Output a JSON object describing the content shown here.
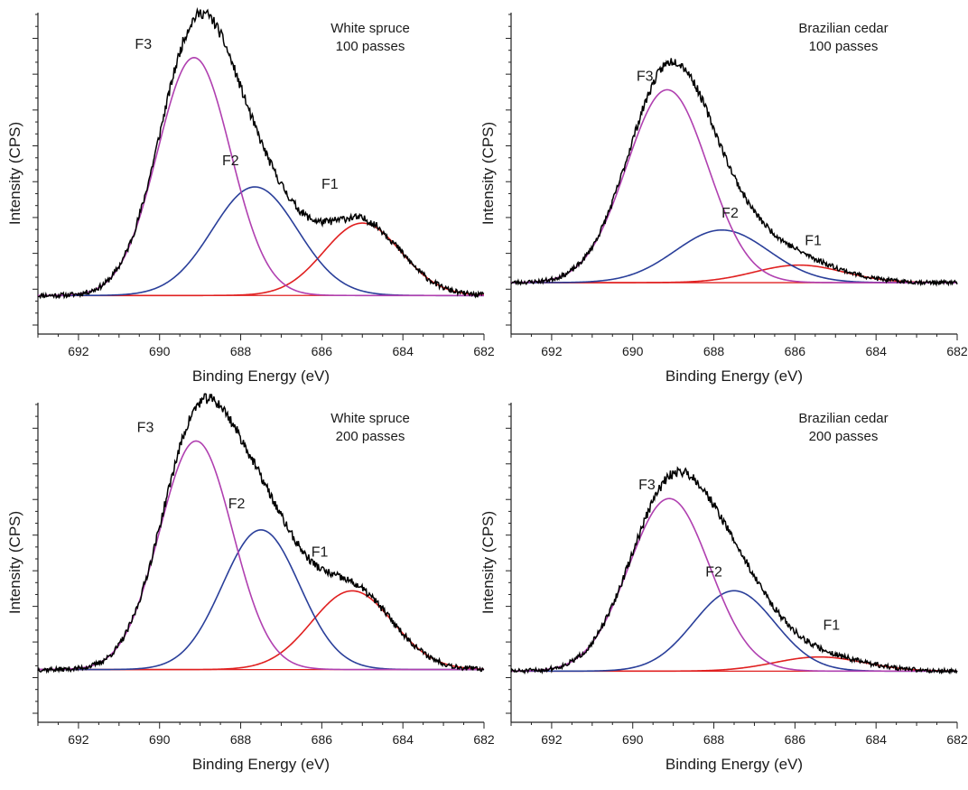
{
  "colors": {
    "measured": "#000000",
    "F1": "#e02020",
    "F2": "#2a3f9a",
    "F3": "#b040b0",
    "baseline": "#e02020"
  },
  "chart_data": [
    {
      "type": "line",
      "sample": "White spruce\n100 passes",
      "sample_lines": [
        "White spruce",
        "100 passes"
      ],
      "xlabel": "Binding Energy (eV)",
      "ylabel": "Intensity (CPS)",
      "xlim": [
        693,
        682
      ],
      "x_ticks": [
        692,
        690,
        688,
        686,
        684,
        682
      ],
      "x_tick_labels": [
        "692",
        "690",
        "688",
        "686",
        "684",
        "682"
      ],
      "ylim": [
        0,
        1.0
      ],
      "baseline": 0.03,
      "components": [
        {
          "name": "F1",
          "center": 685.0,
          "height": 0.28,
          "width": 0.95
        },
        {
          "name": "F2",
          "center": 687.65,
          "height": 0.42,
          "width": 1.05
        },
        {
          "name": "F3",
          "center": 689.15,
          "height": 0.92,
          "width": 0.9
        }
      ],
      "noise_seed": 11
    },
    {
      "type": "line",
      "sample": "Brazilian cedar\n100 passes",
      "sample_lines": [
        "Brazilian cedar",
        "100 passes"
      ],
      "xlabel": "Binding Energy (eV)",
      "ylabel": "Intensity (CPS)",
      "xlim": [
        693,
        682
      ],
      "x_ticks": [
        692,
        690,
        688,
        686,
        684,
        682
      ],
      "x_tick_labels": [
        "692",
        "690",
        "688",
        "686",
        "684",
        "682"
      ],
      "ylim": [
        0,
        1.0
      ],
      "baseline": 0.03,
      "components": [
        {
          "name": "F1",
          "center": 685.9,
          "height": 0.08,
          "width": 1.1
        },
        {
          "name": "F2",
          "center": 687.8,
          "height": 0.24,
          "width": 1.15
        },
        {
          "name": "F3",
          "center": 689.15,
          "height": 0.88,
          "width": 1.0
        }
      ],
      "noise_seed": 23
    },
    {
      "type": "line",
      "sample": "White spruce\n200 passes",
      "sample_lines": [
        "White spruce",
        "200 passes"
      ],
      "xlabel": "Binding Energy (eV)",
      "ylabel": "Intensity (CPS)",
      "xlim": [
        693,
        682
      ],
      "x_ticks": [
        692,
        690,
        688,
        686,
        684,
        682
      ],
      "x_tick_labels": [
        "692",
        "690",
        "688",
        "686",
        "684",
        "682"
      ],
      "ylim": [
        0,
        1.0
      ],
      "baseline": 0.03,
      "components": [
        {
          "name": "F1",
          "center": 685.25,
          "height": 0.31,
          "width": 1.0
        },
        {
          "name": "F2",
          "center": 687.5,
          "height": 0.55,
          "width": 0.95
        },
        {
          "name": "F3",
          "center": 689.1,
          "height": 0.9,
          "width": 0.9
        }
      ],
      "noise_seed": 37
    },
    {
      "type": "line",
      "sample": "Brazilian cedar\n200 passes",
      "sample_lines": [
        "Brazilian cedar",
        "200 passes"
      ],
      "xlabel": "Binding Energy (eV)",
      "ylabel": "Intensity (CPS)",
      "xlim": [
        693,
        682
      ],
      "x_ticks": [
        692,
        690,
        688,
        686,
        684,
        682
      ],
      "x_tick_labels": [
        "692",
        "690",
        "688",
        "686",
        "684",
        "682"
      ],
      "ylim": [
        0,
        1.0
      ],
      "baseline": 0.03,
      "components": [
        {
          "name": "F1",
          "center": 685.4,
          "height": 0.06,
          "width": 1.1
        },
        {
          "name": "F2",
          "center": 687.5,
          "height": 0.34,
          "width": 1.0
        },
        {
          "name": "F3",
          "center": 689.1,
          "height": 0.73,
          "width": 1.0
        }
      ],
      "noise_seed": 51
    }
  ]
}
